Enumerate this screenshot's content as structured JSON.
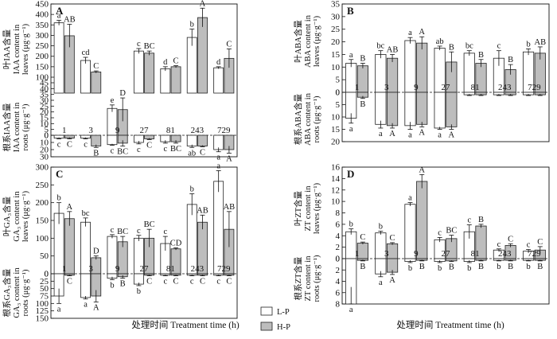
{
  "figure": {
    "x_title_left": "处理时间 Treatment time (h)",
    "x_title_right": "处理时间 Treatment time (h)",
    "legend": [
      {
        "label": "L-P",
        "color": "#ffffff"
      },
      {
        "label": "H-P",
        "color": "#bdbdbd"
      }
    ]
  },
  "chart_data": [
    {
      "panel": "A",
      "type": "bar",
      "categories": [
        "1",
        "3",
        "9",
        "27",
        "81",
        "243",
        "729"
      ],
      "series_names": [
        "L-P",
        "H-P"
      ],
      "colors": {
        "L-P": "#ffffff",
        "H-P": "#bdbdbd"
      },
      "upper": {
        "ylabel_cn": "叶IAA含量",
        "ylabel_en": [
          "IAA content in",
          "leaves (μg·g⁻¹)"
        ],
        "ylim": [
          100,
          450
        ],
        "ticks": [
          100,
          150,
          200,
          250,
          300,
          350,
          400,
          450
        ],
        "L-P": [
          360,
          180,
          0,
          225,
          140,
          290,
          145
        ],
        "L-P_err": [
          12,
          15,
          0,
          12,
          10,
          40,
          5
        ],
        "L-P_sig": [
          "a",
          "cd",
          "",
          "c",
          "d",
          "b",
          "d"
        ],
        "H-P": [
          298,
          125,
          0,
          215,
          150,
          385,
          190
        ],
        "H-P_err": [
          55,
          5,
          0,
          10,
          5,
          45,
          45
        ],
        "H-P_sig": [
          "AB",
          "C",
          "",
          "BC",
          "C",
          "A",
          "C"
        ]
      },
      "middle": {
        "ylim": [
          0,
          45
        ],
        "ticks": [
          0,
          5,
          10,
          15,
          20,
          25,
          30,
          35,
          40,
          45
        ],
        "L-P": [
          0,
          0,
          23,
          0,
          0,
          0,
          0
        ],
        "L-P_err": [
          0,
          0,
          3,
          0,
          0,
          0,
          0
        ],
        "L-P_sig": [
          "",
          "",
          "e",
          "",
          "",
          "",
          ""
        ],
        "H-P": [
          0,
          0,
          22,
          0,
          0,
          0,
          0
        ],
        "H-P_err": [
          0,
          0,
          10,
          0,
          0,
          0,
          0
        ],
        "H-P_sig": [
          "",
          "",
          "D",
          "",
          "",
          "",
          ""
        ]
      },
      "lower": {
        "ylabel_cn": "根系IAA含量",
        "ylabel_en": [
          "IAA content in",
          "roots (μg·g⁻¹)"
        ],
        "ylim": [
          0,
          30
        ],
        "ticks": [
          0,
          10,
          20,
          30
        ],
        "L-P": [
          4,
          4,
          13,
          10,
          9,
          15,
          20
        ],
        "L-P_err": [
          1,
          1,
          1,
          2,
          2,
          2,
          3
        ],
        "L-P_sig": [
          "c",
          "c",
          "c",
          "c",
          "c",
          "ab",
          "a"
        ],
        "H-P": [
          4,
          15,
          11,
          5,
          9,
          15,
          20
        ],
        "H-P_err": [
          1,
          2,
          4,
          1,
          2,
          1,
          5
        ],
        "H-P_sig": [
          "C",
          "B",
          "BC",
          "C",
          "BC",
          "C",
          "A"
        ]
      }
    },
    {
      "panel": "B",
      "type": "bar",
      "categories": [
        "1",
        "3",
        "9",
        "27",
        "81",
        "243",
        "729"
      ],
      "colors": {
        "L-P": "#ffffff",
        "H-P": "#bdbdbd"
      },
      "upper": {
        "ylabel_cn": "叶ABA含量",
        "ylabel_en": [
          "ABA content in",
          "leaves (μg·g⁻¹)"
        ],
        "ylim": [
          0,
          35
        ],
        "ticks": [
          0,
          5,
          10,
          15,
          20,
          25,
          30,
          35
        ],
        "L-P": [
          11.5,
          15,
          20.5,
          17.5,
          15.5,
          13.5,
          16
        ],
        "L-P_err": [
          1.5,
          1.5,
          1.2,
          0.8,
          1,
          3,
          1.2
        ],
        "L-P_sig": [
          "a",
          "bc",
          "a",
          "ab",
          "bc",
          "c",
          "b"
        ],
        "H-P": [
          10.5,
          13.5,
          19.5,
          12,
          11.5,
          9,
          15.5
        ],
        "H-P_err": [
          1,
          1.5,
          2.5,
          4,
          1.5,
          2,
          2.5
        ],
        "H-P_sig": [
          "B",
          "AB",
          "A",
          "B",
          "B",
          "B",
          "AB"
        ]
      },
      "lower": {
        "ylabel_cn": "根系ABA含量",
        "ylabel_en": [
          "ABA content in",
          "roots (μg·g⁻¹)"
        ],
        "ylim": [
          0,
          20
        ],
        "ticks": [
          0,
          5,
          10,
          15,
          20
        ],
        "L-P": [
          10.5,
          13,
          13.5,
          14.5,
          1,
          1,
          1
        ],
        "L-P_err": [
          2,
          1.5,
          1.5,
          0.5,
          0.3,
          0.3,
          0.3
        ],
        "L-P_sig": [
          "a",
          "a",
          "a",
          "a",
          "",
          "",
          ""
        ],
        "H-P": [
          2,
          13.5,
          13,
          14,
          1,
          1,
          1
        ],
        "H-P_err": [
          0.5,
          1,
          1,
          1,
          0.3,
          0.3,
          0.3
        ],
        "H-P_sig": [
          "B",
          "A",
          "A",
          "A",
          "",
          "",
          ""
        ]
      }
    },
    {
      "panel": "C",
      "type": "bar",
      "categories": [
        "1",
        "3",
        "9",
        "27",
        "81",
        "243",
        "729"
      ],
      "colors": {
        "L-P": "#ffffff",
        "H-P": "#bdbdbd"
      },
      "upper": {
        "ylabel_cn": "叶GA₃含量",
        "ylabel_en": [
          "GA₃ content in",
          "leaves (μg·g⁻¹)"
        ],
        "ylim": [
          0,
          300
        ],
        "ticks": [
          0,
          50,
          100,
          150,
          200,
          250,
          300
        ],
        "L-P": [
          170,
          145,
          105,
          100,
          85,
          195,
          260
        ],
        "L-P_err": [
          30,
          12,
          5,
          8,
          20,
          30,
          30
        ],
        "L-P_sig": [
          "b",
          "bc",
          "c",
          "c",
          "c",
          "b",
          "a"
        ],
        "H-P": [
          155,
          45,
          90,
          100,
          70,
          145,
          125
        ],
        "H-P_err": [
          20,
          5,
          15,
          25,
          3,
          20,
          50
        ],
        "H-P_sig": [
          "A",
          "D",
          "BC",
          "BC",
          "CD",
          "AB",
          "AB"
        ]
      },
      "lower": {
        "ylabel_cn": "根系GA₃含量",
        "ylabel_en": [
          "GA₃ content in",
          "roots (μg·g⁻¹)"
        ],
        "ylim": [
          0,
          150
        ],
        "ticks": [
          0,
          25,
          50,
          75,
          100,
          125,
          150
        ],
        "L-P": [
          75,
          80,
          15,
          35,
          5,
          5,
          5
        ],
        "L-P_err": [
          25,
          5,
          5,
          5,
          2,
          2,
          2
        ],
        "L-P_sig": [
          "a",
          "a",
          "b",
          "b",
          "c",
          "c",
          "c"
        ],
        "H-P": [
          5,
          75,
          10,
          5,
          5,
          5,
          5
        ],
        "H-P_err": [
          2,
          20,
          5,
          2,
          2,
          2,
          2
        ],
        "H-P_sig": [
          "C",
          "A",
          "B",
          "C",
          "C",
          "C",
          "C"
        ]
      }
    },
    {
      "panel": "D",
      "type": "bar",
      "categories": [
        "1",
        "3",
        "9",
        "27",
        "81",
        "243",
        "729"
      ],
      "colors": {
        "L-P": "#ffffff",
        "H-P": "#bdbdbd"
      },
      "upper": {
        "ylabel_cn": "叶ZT含量",
        "ylabel_en": [
          "ZT content in",
          "leaves (μg·g⁻¹)"
        ],
        "ylim": [
          0,
          16
        ],
        "ticks": [
          0,
          2,
          4,
          6,
          8,
          10,
          12,
          14,
          16
        ],
        "L-P": [
          4.7,
          4.5,
          9.5,
          3.3,
          4.7,
          1.5,
          1.3
        ],
        "L-P_err": [
          0.5,
          0.3,
          0.3,
          0.4,
          1.2,
          0.2,
          0.3
        ],
        "L-P_sig": [
          "b",
          "b",
          "a",
          "c",
          "c",
          "c",
          "c"
        ],
        "H-P": [
          2.7,
          2.6,
          13.5,
          3.5,
          5.7,
          2.3,
          1.5
        ],
        "H-P_err": [
          0.2,
          0.2,
          1.2,
          0.6,
          0.3,
          0.3,
          0.6
        ],
        "H-P_sig": [
          "C",
          "C",
          "A",
          "BC",
          "B",
          "C",
          "C"
        ]
      },
      "lower": {
        "ylabel_cn": "根系ZT含量",
        "ylabel_en": [
          "ZT content in",
          "roots (μg·g⁻¹)"
        ],
        "ylim": [
          0,
          8
        ],
        "ticks": [
          0,
          2,
          4,
          6,
          8
        ],
        "L-P": [
          8,
          2.7,
          0.5,
          0.5,
          0.5,
          0.3,
          0.3
        ],
        "L-P_err": [
          3,
          0.5,
          0.2,
          0.2,
          0.2,
          0.1,
          0.1
        ],
        "L-P_sig": [
          "a",
          "a",
          "b",
          "b",
          "b",
          "b",
          "b"
        ],
        "H-P": [
          0.3,
          2.4,
          0.3,
          0.4,
          0.3,
          0.3,
          0.3
        ],
        "H-P_err": [
          0.1,
          0.4,
          0.1,
          0.1,
          0.1,
          0.1,
          0.1
        ],
        "H-P_sig": [
          "B",
          "A",
          "B",
          "B",
          "B",
          "B",
          "B"
        ]
      }
    }
  ]
}
